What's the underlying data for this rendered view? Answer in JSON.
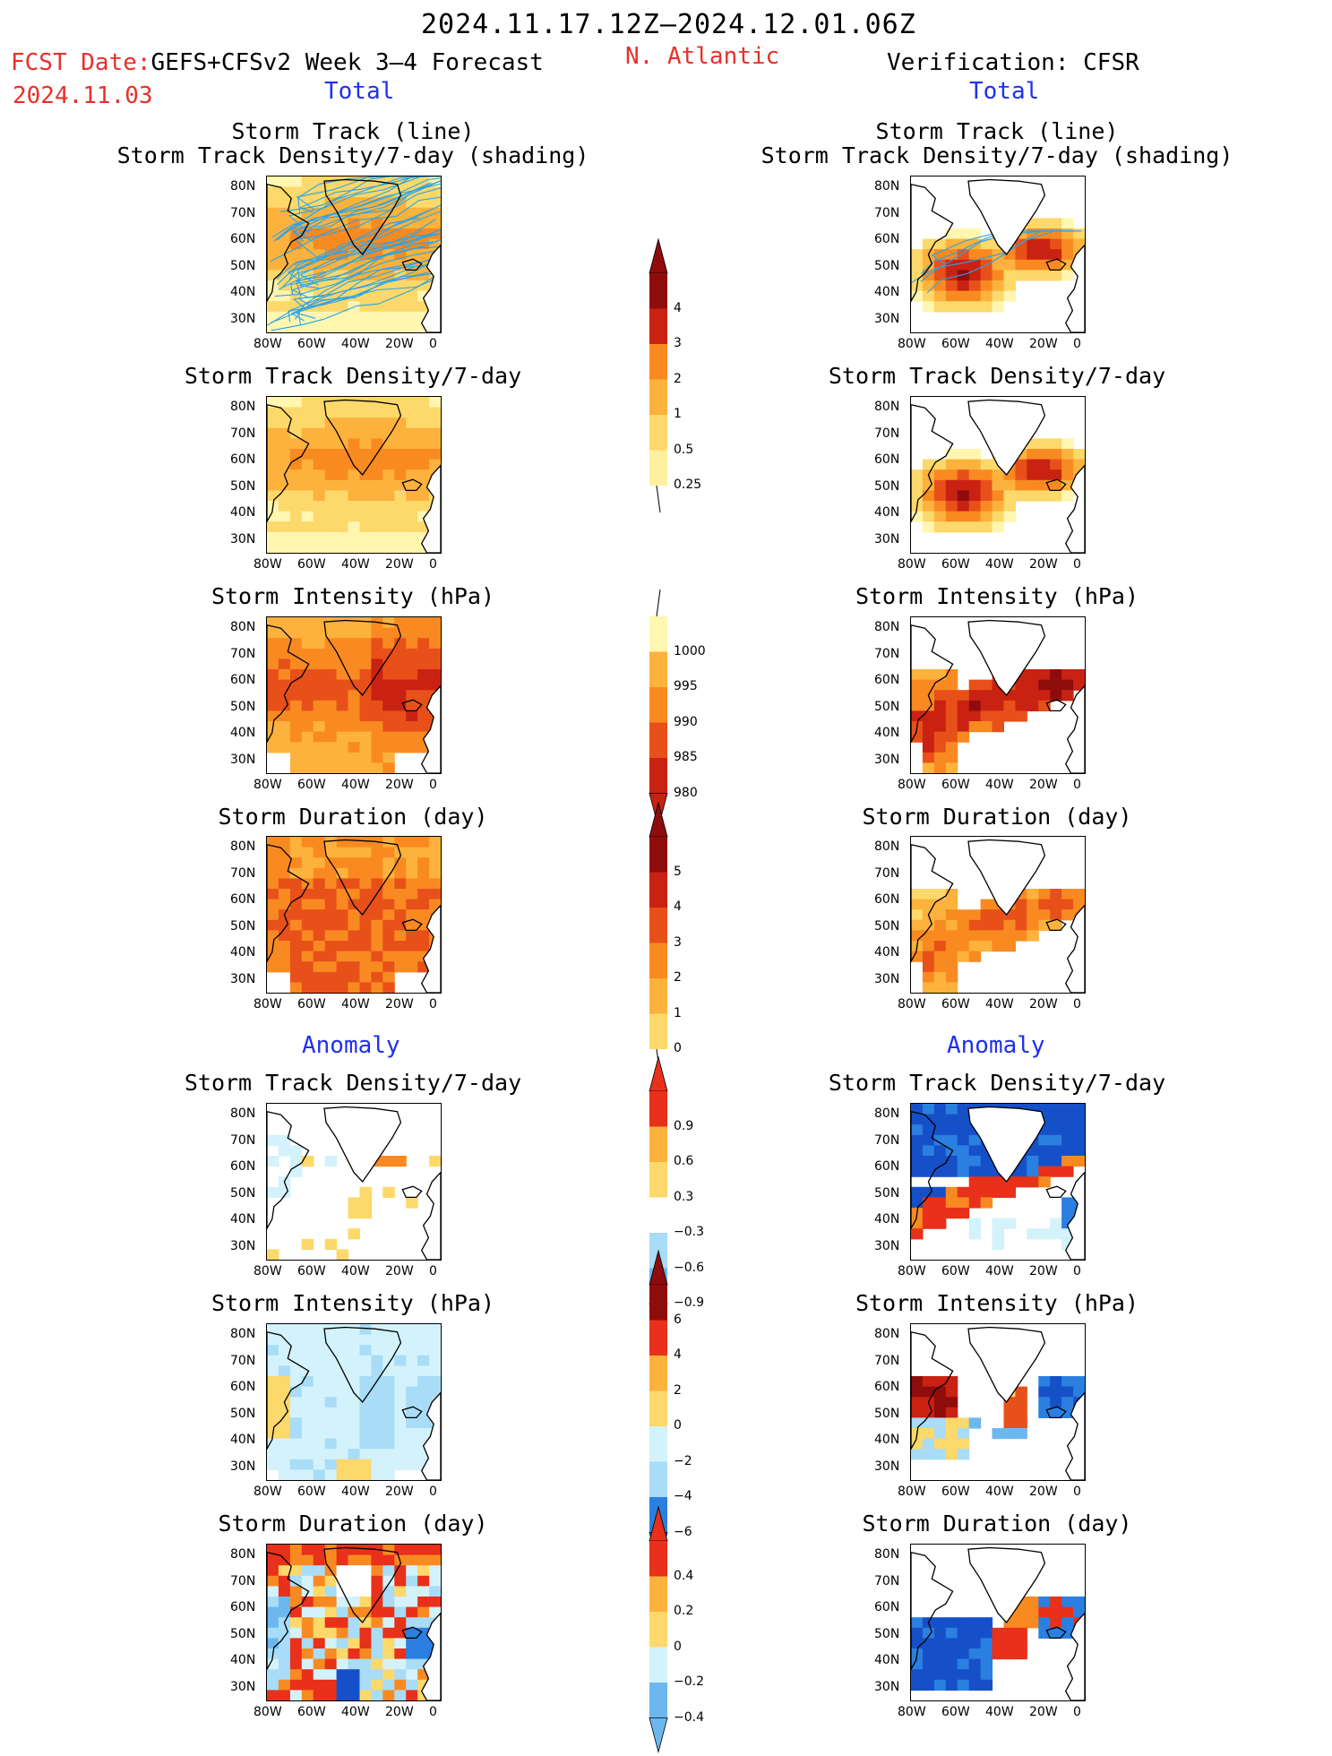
{
  "header": {
    "date_range": "2024.11.17.12Z–2024.12.01.06Z",
    "fcst_prefix": "FCST Date:",
    "forecast_label": "GEFS+CFSv2 Week 3–4 Forecast",
    "fcst_date": "2024.11.03",
    "region": "N. Atlantic",
    "verification": "Verification: CFSR",
    "left_section_total": "Total",
    "right_section_total": "Total",
    "left_section_anomaly": "Anomaly",
    "right_section_anomaly": "Anomaly"
  },
  "panels": {
    "track_title_line1": "Storm Track (line)",
    "track_title_line2": "Storm Track Density/7-day (shading)",
    "density_title": "Storm Track Density/7-day",
    "intensity_title": "Storm Intensity (hPa)",
    "duration_title": "Storm Duration (day)"
  },
  "axes": {
    "lat_labels": [
      "80N",
      "70N",
      "60N",
      "50N",
      "40N",
      "30N"
    ],
    "lon_labels": [
      "80W",
      "60W",
      "40W",
      "20W",
      "0"
    ]
  },
  "colorbars": {
    "density_total": [
      "4",
      "3",
      "2",
      "1",
      "0.5",
      "0.25"
    ],
    "intensity_total": [
      "1000",
      "995",
      "990",
      "985",
      "980"
    ],
    "duration_total": [
      "5",
      "4",
      "3",
      "2",
      "1",
      "0"
    ],
    "density_anom": [
      "0.9",
      "0.6",
      "0.3",
      "−0.3",
      "−0.6",
      "−0.9"
    ],
    "intensity_anom": [
      "6",
      "4",
      "2",
      "0",
      "−2",
      "−4",
      "−6"
    ],
    "duration_anom": [
      "0.4",
      "0.2",
      "0",
      "−0.2",
      "−0.4"
    ]
  },
  "colors": {
    "title_red": "#e8302a",
    "title_blue": "#1f2ff0",
    "warm_scale": [
      "#fff6b0",
      "#fdd86a",
      "#fcb23c",
      "#f98a21",
      "#e8501a",
      "#c92212",
      "#8f0c0c"
    ],
    "cool_scale": [
      "#d3f2fb",
      "#a8dcf7",
      "#6cb8ee",
      "#2a7fe0",
      "#1650c8"
    ],
    "track_line": "#2aa4e6"
  }
}
